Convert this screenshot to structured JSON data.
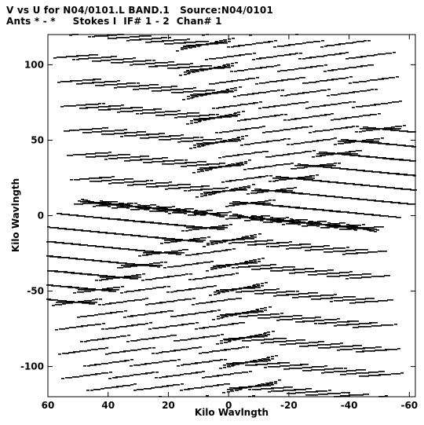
{
  "header": {
    "line1": "V vs U for N04/0101.L BAND.1   Source:N04/0101",
    "line2": "Ants * - *     Stokes I  IF# 1 - 2  Chan# 1"
  },
  "chart_data": {
    "type": "scatter",
    "title": "V vs U for N04/0101.L BAND.1   Source:N04/0101",
    "subtitle": "Ants * - *     Stokes I  IF# 1 - 2  Chan# 1",
    "xlabel": "Kilo Wavlngth",
    "ylabel": "Kilo Wavlngth",
    "xlim": [
      60,
      -62
    ],
    "ylim": [
      -120,
      120
    ],
    "x_ticks": [
      60,
      40,
      20,
      0,
      -20,
      -40,
      -60
    ],
    "x_tick_labels": [
      "60",
      "40",
      "20",
      "0",
      "-20",
      "-40",
      "-60"
    ],
    "y_ticks": [
      100,
      50,
      0,
      -50,
      -100
    ],
    "y_tick_labels": [
      "100",
      "50",
      "0",
      "-50",
      "-100"
    ],
    "grid": false,
    "marker_color": "#000000",
    "arms": [
      {
        "name": "",
        "dx": -1.1,
        "dy": -16.2,
        "wx": -1.45,
        "wy": 0.65
      },
      {
        "name": "",
        "dx": -7.2,
        "dy": 8.2,
        "wx": -1.0,
        "wy": 0.0
      },
      {
        "name": "",
        "dx": 6.3,
        "dy": 1.2,
        "wx": -0.7,
        "wy": -0.35
      }
    ],
    "antenna_counts": [
      0,
      1,
      2,
      3,
      4,
      5,
      6,
      7
    ],
    "track_points": 12,
    "track_half_width": 5.5,
    "band_offsets": [
      -0.9,
      0.9
    ]
  }
}
